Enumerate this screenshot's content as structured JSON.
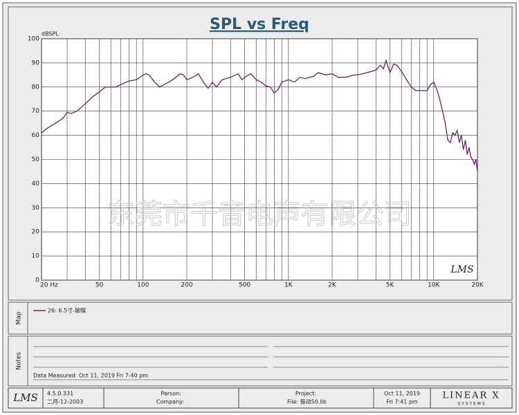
{
  "chart_data": {
    "type": "line",
    "title": "SPL vs Freq",
    "y_label": "dBSPL",
    "x": [
      20,
      22,
      25,
      28,
      30,
      32,
      35,
      40,
      45,
      50,
      55,
      60,
      65,
      70,
      80,
      90,
      100,
      105,
      110,
      120,
      130,
      140,
      160,
      180,
      190,
      200,
      220,
      240,
      260,
      280,
      300,
      320,
      350,
      400,
      450,
      480,
      500,
      550,
      600,
      650,
      700,
      750,
      800,
      850,
      900,
      1000,
      1100,
      1200,
      1300,
      1500,
      1600,
      1800,
      2000,
      2200,
      2500,
      2800,
      3000,
      3500,
      4000,
      4300,
      4500,
      4700,
      5000,
      5300,
      5600,
      6000,
      6500,
      7000,
      7500,
      8000,
      9000,
      9500,
      10000,
      10500,
      11000,
      11500,
      12000,
      12500,
      13000,
      13500,
      14000,
      14500,
      15000,
      15500,
      16000,
      16500,
      17000,
      17500,
      18000,
      18500,
      19000,
      19500,
      20000
    ],
    "series": [
      {
        "name": "26: 6.5寸-玻帽",
        "color": "#6b1f6b",
        "values": [
          61,
          63,
          65,
          67,
          69.5,
          69,
          70,
          73,
          76,
          78,
          80,
          80,
          80,
          81,
          82.5,
          83,
          85,
          85.5,
          85,
          82,
          80,
          81,
          83,
          85.5,
          85,
          83,
          84,
          85.5,
          82,
          79.5,
          82,
          80,
          83,
          84,
          85.5,
          83,
          84,
          85.5,
          83,
          82,
          80.5,
          80,
          77.5,
          79,
          82,
          83,
          82,
          84,
          83.5,
          84.5,
          86,
          85,
          85.5,
          84,
          84,
          85,
          85,
          86,
          87,
          89,
          87.5,
          91,
          86,
          89.5,
          89,
          86.5,
          83,
          80,
          78.5,
          78.5,
          78.5,
          81,
          82,
          79,
          75,
          70,
          65,
          58,
          57,
          61,
          60,
          62,
          57,
          60,
          54,
          58,
          52,
          55,
          51,
          50,
          48,
          50,
          45
        ]
      }
    ],
    "xlim": [
      20,
      20000
    ],
    "ylim": [
      0,
      100
    ],
    "x_scale": "log",
    "grid": true,
    "xticks": [
      {
        "value": 20,
        "label": "20 Hz"
      },
      50,
      100,
      200,
      500,
      {
        "value": 1000,
        "label": "1K"
      },
      {
        "value": 2000,
        "label": "2K"
      },
      {
        "value": 5000,
        "label": "5K"
      },
      {
        "value": 10000,
        "label": "10K"
      },
      {
        "value": 20000,
        "label": "20K"
      }
    ],
    "minor_xticks": [
      30,
      40,
      60,
      70,
      80,
      90,
      300,
      400,
      600,
      700,
      800,
      900,
      3000,
      4000,
      6000,
      7000,
      8000,
      9000
    ],
    "yticks": [
      0,
      10,
      20,
      30,
      40,
      50,
      60,
      70,
      80,
      90,
      100
    ],
    "watermark": "东莞市千音电声有限公司",
    "logo": "LMS"
  },
  "map": {
    "label": "Map"
  },
  "notes": {
    "label": "Notes",
    "measured": "Data Measured: Oct 11, 2019  Fri  7:40 pm"
  },
  "footer": {
    "logo": "LMS",
    "version": "4.5.0.331",
    "build_date": "二月-12-2003",
    "person": "Person:",
    "company": "Company:",
    "project": "Project:",
    "file": "File: 振动50.lib",
    "date": "Oct 11, 2019",
    "time": "Fri  7:41 pm",
    "brand": "LINEAR X",
    "brand_sub": "S Y S T E M S"
  }
}
